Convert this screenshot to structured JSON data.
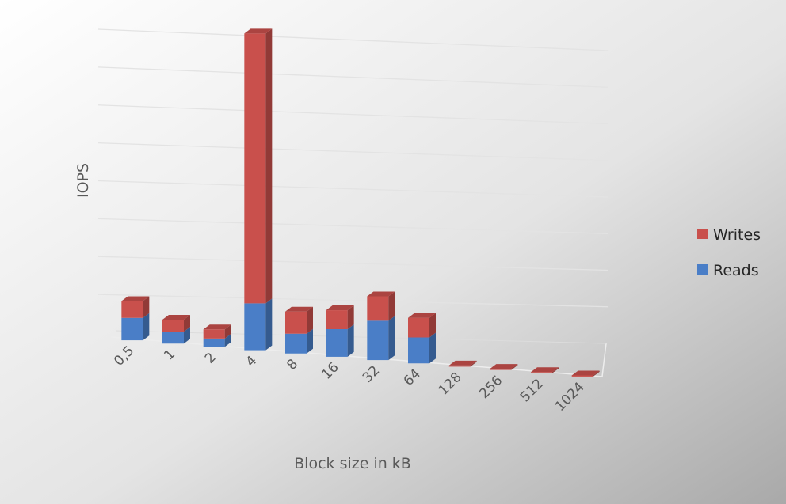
{
  "chart_data": {
    "type": "bar",
    "stacked": true,
    "style": "3d",
    "categories": [
      "0,5",
      "1",
      "2",
      "4",
      "8",
      "16",
      "32",
      "64",
      "128",
      "256",
      "512",
      "1024"
    ],
    "series": [
      {
        "name": "Reads",
        "color": "#4a7ec7",
        "values": [
          56,
          30,
          21,
          118,
          50,
          70,
          100,
          66,
          0,
          0,
          0,
          0
        ]
      },
      {
        "name": "Writes",
        "color": "#c9504c",
        "values": [
          42,
          30,
          23,
          680,
          56,
          48,
          62,
          50,
          3,
          3,
          3,
          3
        ]
      }
    ],
    "xlabel": "Block size in kB",
    "ylabel": "IOPS",
    "ylim": [
      0,
      800
    ],
    "ytick_step": 100,
    "grid": true,
    "legend": "right"
  }
}
